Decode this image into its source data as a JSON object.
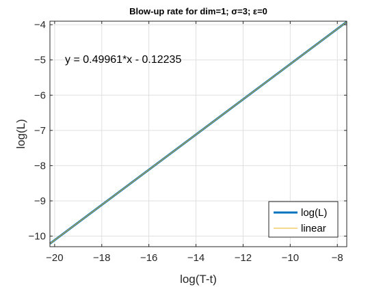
{
  "chart_data": {
    "type": "line",
    "title": "Blow-up rate for dim=1; σ=3; ε=0",
    "xlabel": "log(T-t)",
    "ylabel": "log(L)",
    "xlim": [
      -20.2,
      -7.6
    ],
    "ylim": [
      -10.3,
      -3.9
    ],
    "xticks": [
      -20,
      -18,
      -16,
      -14,
      -12,
      -10,
      -8
    ],
    "yticks": [
      -10,
      -9,
      -8,
      -7,
      -6,
      -5,
      -4
    ],
    "xtick_labels": [
      "−20",
      "−18",
      "−16",
      "−14",
      "−12",
      "−10",
      "−8"
    ],
    "ytick_labels": [
      "−10",
      "−9",
      "−8",
      "−7",
      "−6",
      "−5",
      "−4"
    ],
    "grid": true,
    "legend_position": "bottom-right",
    "annotation": "y = 0.49961*x - 0.12235",
    "series": [
      {
        "name": "log(L)",
        "color": "#0072BD",
        "x": [
          -20.2,
          -7.6
        ],
        "y": [
          -10.214,
          -3.919
        ]
      },
      {
        "name": "linear",
        "color": "#EDB120",
        "x": [
          -20.2,
          -7.6
        ],
        "y": [
          -10.214,
          -3.919
        ]
      }
    ]
  }
}
